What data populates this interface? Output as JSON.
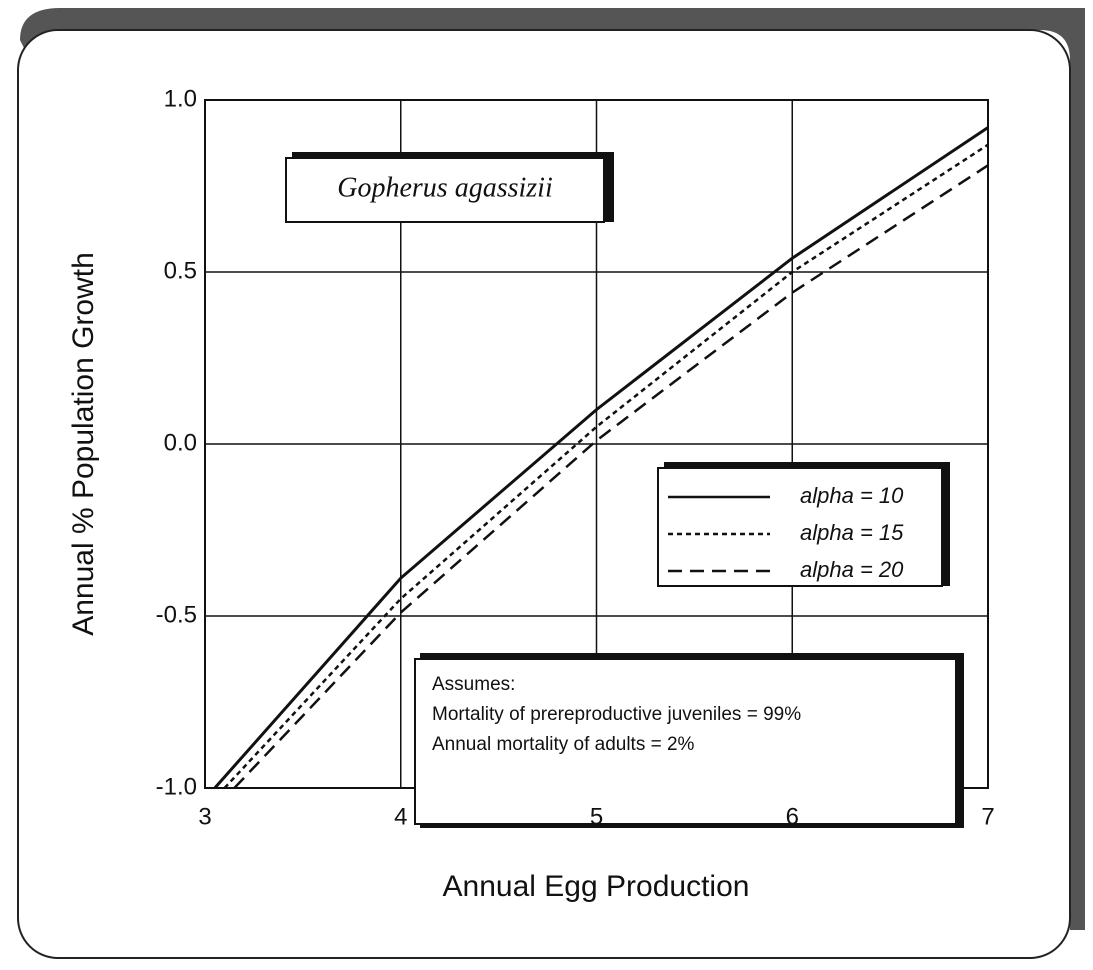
{
  "chart_data": {
    "type": "line",
    "x_label": "Annual Egg Production",
    "y_label": "Annual % Population Growth",
    "species_label": "Gopherus agassizii",
    "notes": [
      "Assumes:",
      "Mortality of prereproductive juveniles = 99%",
      "Annual mortality of adults = 2%"
    ],
    "series": [
      {
        "name": "alpha = 10",
        "color": "#111111",
        "dash": "solid",
        "x": [
          3.05,
          4,
          5,
          6,
          7
        ],
        "values": [
          -1.0,
          -0.39,
          0.1,
          0.54,
          0.92
        ]
      },
      {
        "name": "alpha = 15",
        "color": "#111111",
        "dash": "dotted",
        "x": [
          3.1,
          4,
          5,
          6,
          7
        ],
        "values": [
          -1.0,
          -0.45,
          0.05,
          0.5,
          0.87
        ]
      },
      {
        "name": "alpha = 20",
        "color": "#111111",
        "dash": "dashed",
        "x": [
          3.15,
          4,
          5,
          6,
          7
        ],
        "values": [
          -1.0,
          -0.49,
          0.01,
          0.44,
          0.81
        ]
      }
    ],
    "xlim": [
      3,
      7
    ],
    "xticks": [
      3,
      4,
      5,
      6,
      7
    ],
    "ylim": [
      -1.0,
      1.0
    ],
    "yticks": [
      {
        "value": -1.0,
        "label": "-1.0"
      },
      {
        "value": -0.5,
        "label": "-0.5"
      },
      {
        "value": 0,
        "label": "0.0"
      },
      {
        "value": 0.5,
        "label": "0.5"
      },
      {
        "value": 1.0,
        "label": "1.0"
      }
    ],
    "grid": true
  }
}
